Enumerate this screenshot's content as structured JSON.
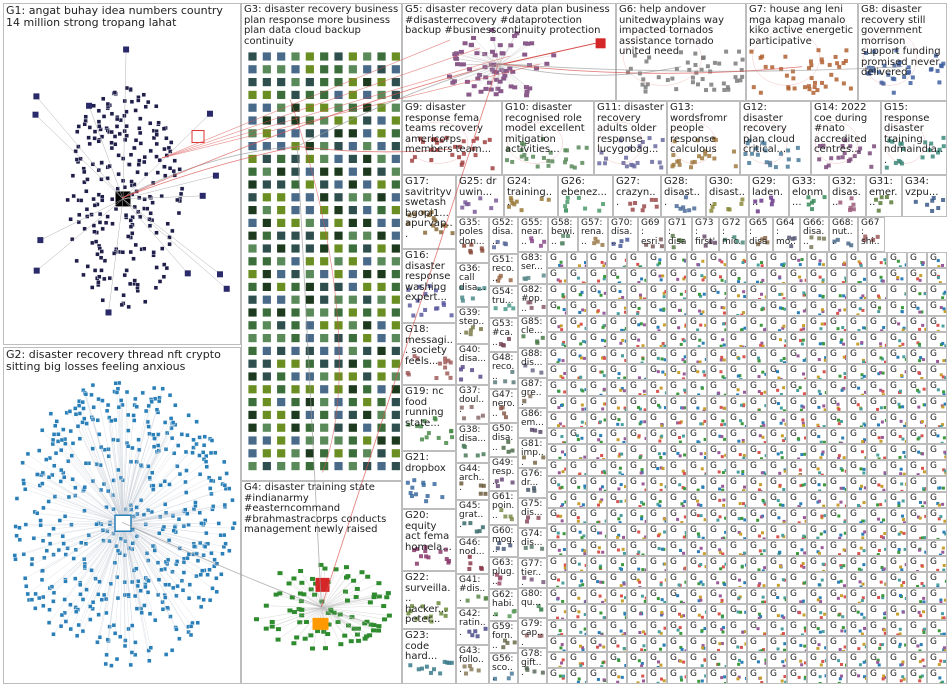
{
  "colors": {
    "box_border": "#bdbdbd",
    "label_text": "#222222",
    "edge_red": "#d9534f",
    "edge_grey": "#9a9a9a",
    "g1_node": "#1f1f4a",
    "g2_node": "#2a7fb8",
    "g3_node": "#3c6e3c",
    "g4_node": "#2e8b2e"
  },
  "groups": [
    {
      "id": "G1",
      "label": "G1: angat buhay idea numbers country 14 million strong tropang lahat",
      "layout": "ellipse",
      "node_color": "#1f1f4a"
    },
    {
      "id": "G2",
      "label": "G2: disaster recovery thread nft crypto sitting big losses feeling anxious",
      "layout": "ellipse",
      "node_color": "#2a7fb8"
    },
    {
      "id": "G3",
      "label": "G3: disaster recovery business plan response more business plan data cloud backup continuity",
      "layout": "grid",
      "node_color": "#3c6e3c"
    },
    {
      "id": "G4",
      "label": "G4: disaster training state #indianarmy #easterncommand #brahmastracorps conducts management newly raised",
      "layout": "cluster",
      "node_color": "#2e8b2e"
    },
    {
      "id": "G5",
      "label": "G5: disaster recovery data plan business #disasterrecovery #dataprotection backup #businesscontinuity protection",
      "layout": "cluster",
      "node_color": "#8a5a8a"
    },
    {
      "id": "G6",
      "label": "G6: help andover unitedwayplains way impacted tornados assistance tornado united need",
      "layout": "few",
      "node_color": "#7a7a7a"
    },
    {
      "id": "G7",
      "label": "G7: house ang leni mga kapag manalo kiko active energetic participative",
      "layout": "few",
      "node_color": "#b06030"
    },
    {
      "id": "G8",
      "label": "G8: disaster recovery still government morrison support funding promised never delivered",
      "layout": "few",
      "node_color": "#4060a0"
    },
    {
      "id": "G9",
      "label": "G9: disaster response fema teams recovery americorps members team...",
      "layout": "few",
      "node_color": "#a04040"
    },
    {
      "id": "G10",
      "label": "G10: disaster recognised role model excellent mitigation activities...",
      "layout": "few",
      "node_color": "#5a8a5a"
    },
    {
      "id": "G11",
      "label": "G11: disaster recovery adults older response lucygobag...",
      "layout": "few",
      "node_color": "#6a6aa0"
    },
    {
      "id": "G13",
      "label": "G13: wordsfromr people response calculous",
      "layout": "few",
      "node_color": "#a07a40"
    },
    {
      "id": "G12",
      "label": "G12: disaster recovery plan cloud critical...",
      "layout": "few",
      "node_color": "#4a7a9a"
    },
    {
      "id": "G14",
      "label": "G14: 2022 coe during #nato accredited centres...",
      "layout": "few",
      "node_color": "#7a4a7a"
    },
    {
      "id": "G15",
      "label": "G15: response disaster training ndmaindia...",
      "layout": "few",
      "node_color": "#3a8a7a"
    },
    {
      "id": "G17",
      "label": "G17: savitrityv swetash bgopi1... apurvap...",
      "layout": "few",
      "node_color": "#8a6a3a"
    },
    {
      "id": "G16",
      "label": "G16: disaster response washing expert...",
      "layout": "few",
      "node_color": "#5a5aa0"
    },
    {
      "id": "G18",
      "label": "G18: messagi... society feels...",
      "layout": "few",
      "node_color": "#a05a5a"
    },
    {
      "id": "G19",
      "label": "G19: nc food running state...",
      "layout": "few",
      "node_color": "#4a8a4a"
    },
    {
      "id": "G21",
      "label": "G21: dropbox",
      "layout": "few",
      "node_color": "#3a6aa0"
    },
    {
      "id": "G20",
      "label": "G20: equity act fema homela...",
      "layout": "few",
      "node_color": "#8a3a6a"
    },
    {
      "id": "G22",
      "label": "G22: surveilla... hacker... peter...",
      "layout": "few",
      "node_color": "#6a8a3a"
    },
    {
      "id": "G23",
      "label": "G23: code hard...",
      "layout": "few",
      "node_color": "#3a7a8a"
    },
    {
      "id": "G25",
      "label": "G25: dr uwin...",
      "layout": "few",
      "node_color": "#7a5a9a"
    },
    {
      "id": "G24",
      "label": "G24: training...",
      "layout": "few",
      "node_color": "#9a7a3a"
    },
    {
      "id": "G26",
      "label": "G26: ebenez...",
      "layout": "few",
      "node_color": "#4a9a6a"
    },
    {
      "id": "G27",
      "label": "G27: crazyn...",
      "layout": "few",
      "node_color": "#9a4a4a"
    },
    {
      "id": "G28",
      "label": "G28: disast...",
      "layout": "few",
      "node_color": "#4a6a9a"
    },
    {
      "id": "G30",
      "label": "G30: disast...",
      "layout": "few",
      "node_color": "#8a8a3a"
    },
    {
      "id": "G29",
      "label": "G29: laden...",
      "layout": "few",
      "node_color": "#6a3a8a"
    },
    {
      "id": "G33",
      "label": "G33: elonm...",
      "layout": "few",
      "node_color": "#3a8a5a"
    },
    {
      "id": "G32",
      "label": "G32: disas...",
      "layout": "few",
      "node_color": "#9a5a7a"
    },
    {
      "id": "G31",
      "label": "G31: emer...",
      "layout": "few",
      "node_color": "#5a7a3a"
    },
    {
      "id": "G34",
      "label": "G34: vzpu...",
      "layout": "few",
      "node_color": "#3a5a8a"
    },
    {
      "id": "G35",
      "label": "G35: poles don...",
      "layout": "few",
      "node_color": "#8a4a3a"
    },
    {
      "id": "G36",
      "label": "G36: call disa...",
      "layout": "few",
      "node_color": "#4a8a8a"
    },
    {
      "id": "G39",
      "label": "G39: step...",
      "layout": "few",
      "node_color": "#7a7a4a"
    },
    {
      "id": "G40",
      "label": "G40: disa...",
      "layout": "few",
      "node_color": "#5a4a8a"
    },
    {
      "id": "G37",
      "label": "G37: doul...",
      "layout": "few",
      "node_color": "#8a6a6a"
    },
    {
      "id": "G38",
      "label": "G38: disa...",
      "layout": "few",
      "node_color": "#4a7a5a"
    },
    {
      "id": "G44",
      "label": "G44: arch...",
      "layout": "few",
      "node_color": "#6a5a3a"
    },
    {
      "id": "G45",
      "label": "G45: grat...",
      "layout": "few",
      "node_color": "#3a6a6a"
    },
    {
      "id": "G46",
      "label": "G46: nod...",
      "layout": "few",
      "node_color": "#8a3a4a"
    },
    {
      "id": "G41",
      "label": "G41: #dis...",
      "layout": "few",
      "node_color": "#5a8a4a"
    },
    {
      "id": "G42",
      "label": "G42: ratin...",
      "layout": "few",
      "node_color": "#4a4a8a"
    },
    {
      "id": "G43",
      "label": "G43: follo...",
      "layout": "few",
      "node_color": "#8a7a5a"
    },
    {
      "id": "G52",
      "label": "G52: disa...",
      "layout": "few",
      "node_color": "#5a6a9a"
    },
    {
      "id": "G51",
      "label": "G51: reco...",
      "layout": "few",
      "node_color": "#9a6a4a"
    },
    {
      "id": "G54",
      "label": "G54: tru...",
      "layout": "few",
      "node_color": "#4a9a8a"
    },
    {
      "id": "G53",
      "label": "G53: #ca...",
      "layout": "few",
      "node_color": "#7a4a5a"
    },
    {
      "id": "G48",
      "label": "G48: reco...",
      "layout": "few",
      "node_color": "#5a7a7a"
    },
    {
      "id": "G47",
      "label": "G47: nero...",
      "layout": "few",
      "node_color": "#8a5a4a"
    },
    {
      "id": "G50",
      "label": "G50: disa...",
      "layout": "few",
      "node_color": "#4a6a4a"
    },
    {
      "id": "G49",
      "label": "G49: resp...",
      "layout": "few",
      "node_color": "#6a4a7a"
    },
    {
      "id": "G61",
      "label": "G61: poin...",
      "layout": "few",
      "node_color": "#7a8a4a"
    },
    {
      "id": "G60",
      "label": "G60: mog...",
      "layout": "few",
      "node_color": "#4a5a7a"
    },
    {
      "id": "G63",
      "label": "G63: plug...",
      "layout": "few",
      "node_color": "#9a4a6a"
    },
    {
      "id": "G62",
      "label": "G62: habi...",
      "layout": "few",
      "node_color": "#5a9a5a"
    },
    {
      "id": "G59",
      "label": "G59: forn...",
      "layout": "few",
      "node_color": "#6a6a4a"
    },
    {
      "id": "G56",
      "label": "G56: sco...",
      "layout": "few",
      "node_color": "#4a7a9a"
    },
    {
      "id": "G55",
      "label": "G55: near...",
      "layout": "few",
      "node_color": "#8a4a8a"
    },
    {
      "id": "G58",
      "label": "G58: bewi...",
      "layout": "few",
      "node_color": "#5a8a6a"
    },
    {
      "id": "G57",
      "label": "G57: rena...",
      "layout": "few",
      "node_color": "#9a7a4a"
    },
    {
      "id": "G70",
      "label": "G70: disa...",
      "layout": "few",
      "node_color": "#4a5a9a"
    },
    {
      "id": "G69",
      "label": "G69: esri...",
      "layout": "few",
      "node_color": "#7a5a5a"
    },
    {
      "id": "G71",
      "label": "G71: disa...",
      "layout": "few",
      "node_color": "#5a7a4a"
    },
    {
      "id": "G73",
      "label": "G73: first'...",
      "layout": "few",
      "node_color": "#6a4a6a"
    },
    {
      "id": "G72",
      "label": "G72: mic...",
      "layout": "few",
      "node_color": "#4a8a7a"
    },
    {
      "id": "G65",
      "label": "G65: disa...",
      "layout": "few",
      "node_color": "#8a6a4a"
    },
    {
      "id": "G64",
      "label": "G64: mo...",
      "layout": "few",
      "node_color": "#5a5a7a"
    },
    {
      "id": "G66",
      "label": "G66: disa...",
      "layout": "few",
      "node_color": "#7a7a5a"
    },
    {
      "id": "G68",
      "label": "G68: nut...",
      "layout": "few",
      "node_color": "#4a6a8a"
    },
    {
      "id": "G67",
      "label": "G67: shi...",
      "layout": "few",
      "node_color": "#9a5a5a"
    },
    {
      "id": "G83",
      "label": "G83: ser...",
      "layout": "few",
      "node_color": "#5a8a8a"
    },
    {
      "id": "G82",
      "label": "G82: #op...",
      "layout": "few",
      "node_color": "#8a5a6a"
    },
    {
      "id": "G85",
      "label": "G85: cle...",
      "layout": "few",
      "node_color": "#4a7a4a"
    },
    {
      "id": "G88",
      "label": "G88: dis...",
      "layout": "few",
      "node_color": "#6a6a8a"
    },
    {
      "id": "G87",
      "label": "G87: gre...",
      "layout": "few",
      "node_color": "#8a7a6a"
    },
    {
      "id": "G86",
      "label": "G86: em...",
      "layout": "few",
      "node_color": "#5a4a6a"
    },
    {
      "id": "G81",
      "label": "G81: imp...",
      "layout": "few",
      "node_color": "#7a6a4a"
    },
    {
      "id": "G76",
      "label": "G76: dr...",
      "layout": "few",
      "node_color": "#4a5a6a"
    },
    {
      "id": "G75",
      "label": "G75: dis...",
      "layout": "few",
      "node_color": "#8a4a5a"
    },
    {
      "id": "G74",
      "label": "G74: dis...",
      "layout": "few",
      "node_color": "#5a7a6a"
    },
    {
      "id": "G77",
      "label": "G77: tier...",
      "layout": "few",
      "node_color": "#7a5a7a"
    },
    {
      "id": "G80",
      "label": "G80: qu...",
      "layout": "few",
      "node_color": "#4a8a5a"
    },
    {
      "id": "G79",
      "label": "G79: cap...",
      "layout": "few",
      "node_color": "#9a6a6a"
    },
    {
      "id": "G78",
      "label": "G78: gift...",
      "layout": "few",
      "node_color": "#5a6a5a"
    }
  ],
  "small_group_tag": "G"
}
